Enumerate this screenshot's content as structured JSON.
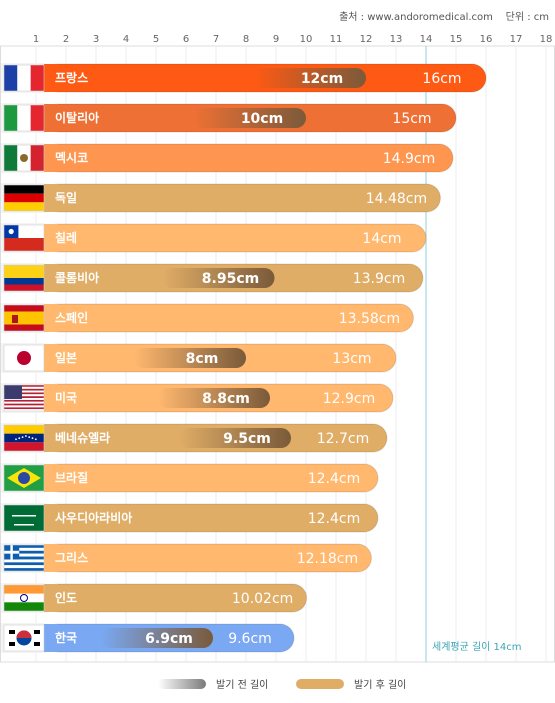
{
  "source": {
    "text": "출처 : www.andoromedical.com",
    "unit": "단위 : cm"
  },
  "chart_data": {
    "type": "bar",
    "orientation": "horizontal",
    "x_ticks": [
      "1",
      "2",
      "3",
      "4",
      "5",
      "6",
      "7",
      "8",
      "9",
      "10",
      "11",
      "12",
      "13",
      "14",
      "15",
      "16",
      "17",
      "18"
    ],
    "xlim": [
      0,
      18
    ],
    "grid": true,
    "categories": [
      "프랑스",
      "이탈리아",
      "멕시코",
      "독일",
      "칠레",
      "콜롬비아",
      "스페인",
      "일본",
      "미국",
      "베네슈엘라",
      "브라질",
      "사우디아라비아",
      "그리스",
      "인도",
      "한국"
    ],
    "series": [
      {
        "name": "발기 후 길이",
        "values": [
          16,
          15,
          14.9,
          14.48,
          14,
          13.9,
          13.58,
          13,
          12.9,
          12.7,
          12.4,
          12.4,
          12.18,
          10.02,
          9.6
        ]
      },
      {
        "name": "발기 전 길이",
        "values": [
          12,
          10,
          null,
          null,
          null,
          8.95,
          null,
          8,
          8.8,
          9.5,
          null,
          null,
          null,
          null,
          6.9
        ]
      }
    ],
    "after_labels": [
      "16cm",
      "15cm",
      "14.9cm",
      "14.48cm",
      "14cm",
      "13.9cm",
      "13.58cm",
      "13cm",
      "12.9cm",
      "12.7cm",
      "12.4cm",
      "12.4cm",
      "12.18cm",
      "10.02cm",
      "9.6cm"
    ],
    "before_labels": [
      "12cm",
      "10cm",
      "",
      "",
      "",
      "8.95cm",
      "",
      "8cm",
      "8.8cm",
      "9.5cm",
      "",
      "",
      "",
      "",
      "6.9cm"
    ],
    "average": {
      "value": 14,
      "label": "세계평균 길이 14cm"
    },
    "colors": {
      "after": [
        "#ff5a14",
        "#ee7034",
        "#ff9650",
        "#e0ad66",
        "#ffb86e",
        "#e0ad66",
        "#ffb86e",
        "#ffb86e",
        "#ffb86e",
        "#e0ad66",
        "#ffb86e",
        "#e0ad66",
        "#ffb86e",
        "#e0ad66",
        "#7aa8f2"
      ],
      "before": "#7a5a3a",
      "average_line": "#8fd0dc",
      "grid": "#ececec"
    },
    "flags": [
      "france",
      "italy",
      "mexico",
      "germany",
      "chile",
      "colombia",
      "spain",
      "japan",
      "usa",
      "venezuela",
      "brazil",
      "saudi-arabia",
      "greece",
      "india",
      "korea"
    ]
  },
  "legend": {
    "before": "발기 전 길이",
    "after": "발기 후 길이",
    "before_color": "#7a7a7a",
    "after_color": "#e0ad66"
  }
}
